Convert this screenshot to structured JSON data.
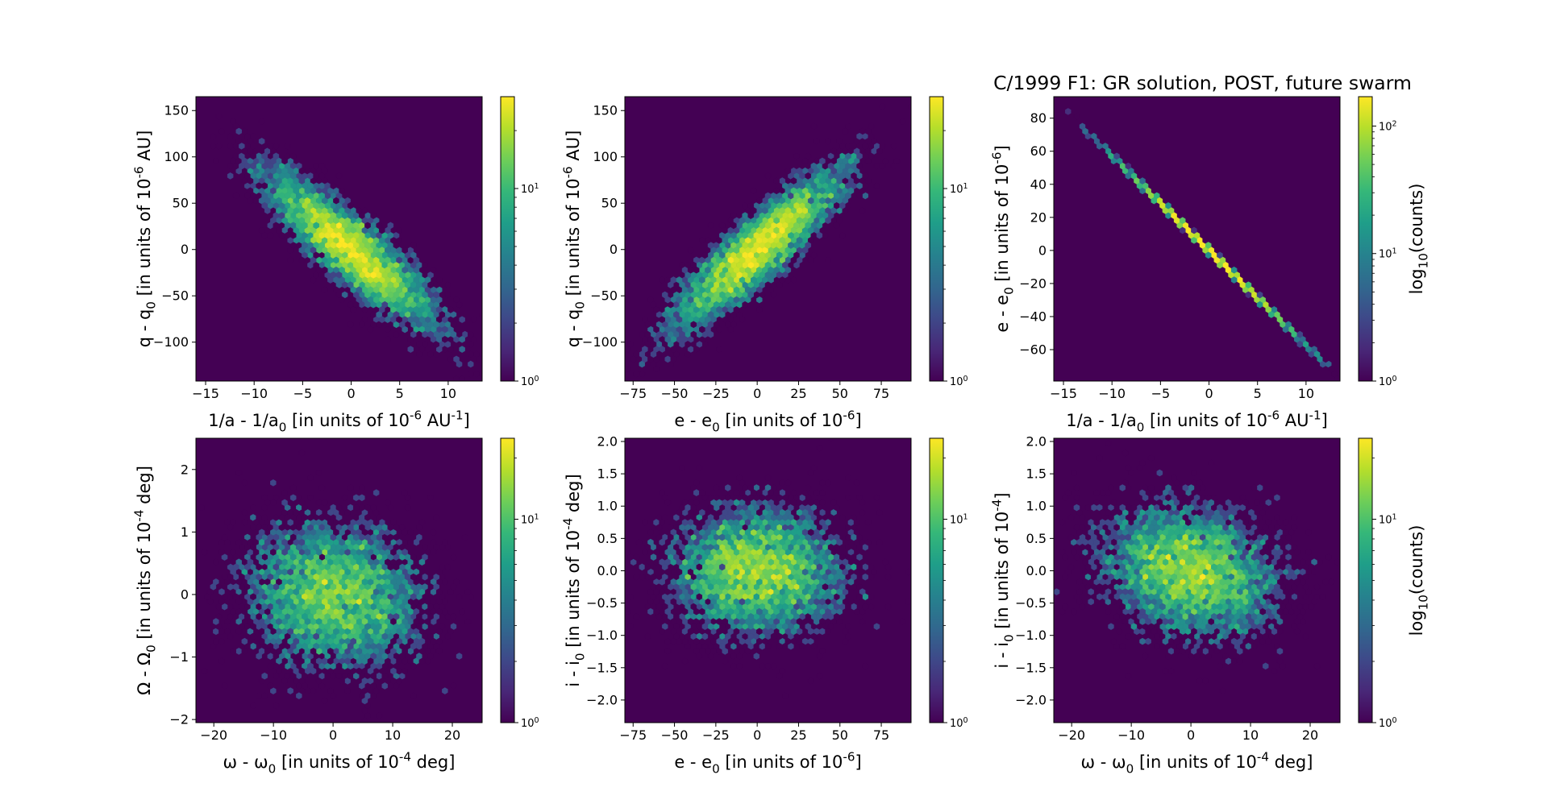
{
  "figure": {
    "title": "C/1999 F1: GR solution, POST, future swarm"
  },
  "colormap": {
    "name": "viridis",
    "stops": [
      "#440154",
      "#482878",
      "#3e4989",
      "#31688e",
      "#26828e",
      "#1f9e89",
      "#35b779",
      "#6ece58",
      "#b5de2b",
      "#fde725"
    ]
  },
  "chart_data": [
    {
      "type": "heatmap",
      "subtype": "hexbin",
      "xlabel": "1/a - 1/a$_0$ [in units of 10$^{-6}$ AU$^{-1}$]",
      "ylabel": "q - q$_0$ [in units of 10$^{-6}$ AU]",
      "xlim": [
        -16,
        13.5
      ],
      "ylim": [
        -142,
        165
      ],
      "xticks": [
        -15,
        -10,
        -5,
        0,
        5,
        10
      ],
      "yticks": [
        -100,
        -50,
        0,
        50,
        100,
        150
      ],
      "distribution": {
        "x_mean": 0,
        "x_sd": 4.5,
        "y_mean": 0,
        "y_sd": 43,
        "correlation": -0.88
      },
      "colorbar": {
        "scale": "log",
        "range": [
          1,
          30
        ],
        "ticks": [
          {
            "value": 1,
            "label": "10^0"
          },
          {
            "value": 10,
            "label": "10^1"
          }
        ],
        "label": ""
      }
    },
    {
      "type": "heatmap",
      "subtype": "hexbin",
      "xlabel": "e - e$_0$ [in units of 10$^{-6}$]",
      "ylabel": "q - q$_0$ [in units of 10$^{-6}$ AU]",
      "xlim": [
        -80,
        93
      ],
      "ylim": [
        -142,
        165
      ],
      "xticks": [
        -75,
        -50,
        -25,
        0,
        25,
        50,
        75
      ],
      "yticks": [
        -100,
        -50,
        0,
        50,
        100,
        150
      ],
      "distribution": {
        "x_mean": 0,
        "x_sd": 26,
        "y_mean": 0,
        "y_sd": 43,
        "correlation": 0.88
      },
      "colorbar": {
        "scale": "log",
        "range": [
          1,
          30
        ],
        "ticks": [
          {
            "value": 1,
            "label": "10^0"
          },
          {
            "value": 10,
            "label": "10^1"
          }
        ],
        "label": ""
      }
    },
    {
      "type": "heatmap",
      "subtype": "hexbin",
      "title": "C/1999 F1: GR solution, POST, future swarm",
      "xlabel": "1/a - 1/a$_0$ [in units of 10$^{-6}$ AU$^{-1}$]",
      "ylabel": "e - e$_0$ [in units of 10$^{-6}$]",
      "xlim": [
        -16,
        13.5
      ],
      "ylim": [
        -79,
        93
      ],
      "xticks": [
        -15,
        -10,
        -5,
        0,
        5,
        10
      ],
      "yticks": [
        -60,
        -40,
        -20,
        0,
        20,
        40,
        60,
        80
      ],
      "distribution": {
        "x_mean": 0,
        "x_sd": 4.5,
        "y_mean": 0,
        "y_sd": 25.7,
        "correlation": -0.9995,
        "slope": -5.72
      },
      "colorbar": {
        "scale": "log",
        "range": [
          1,
          170
        ],
        "ticks": [
          {
            "value": 1,
            "label": "10^0"
          },
          {
            "value": 10,
            "label": "10^1"
          },
          {
            "value": 100,
            "label": "10^2"
          }
        ],
        "label": "log$_{10}$(counts)"
      }
    },
    {
      "type": "heatmap",
      "subtype": "hexbin",
      "xlabel": "ω - ω$_0$ [in units of 10$^{-4}$ deg]",
      "ylabel": "Ω - Ω$_0$ [in units of 10$^{-4}$ deg]",
      "xlim": [
        -23,
        25
      ],
      "ylim": [
        -2.05,
        2.5
      ],
      "xticks": [
        -20,
        -10,
        0,
        10,
        20
      ],
      "yticks": [
        -2,
        -1,
        0,
        1,
        2
      ],
      "distribution": {
        "x_mean": 0,
        "x_sd": 7.5,
        "y_mean": 0,
        "y_sd": 0.6,
        "correlation": -0.1
      },
      "colorbar": {
        "scale": "log",
        "range": [
          1,
          25
        ],
        "ticks": [
          {
            "value": 1,
            "label": "10^0"
          },
          {
            "value": 10,
            "label": "10^1"
          }
        ],
        "label": ""
      }
    },
    {
      "type": "heatmap",
      "subtype": "hexbin",
      "xlabel": "e - e$_0$ [in units of 10$^{-6}$]",
      "ylabel": "i - i$_0$ [in units of 10$^{-4}$ deg]",
      "xlim": [
        -80,
        93
      ],
      "ylim": [
        -2.35,
        2.05
      ],
      "xticks": [
        -75,
        -50,
        -25,
        0,
        25,
        50,
        75
      ],
      "yticks": [
        -2.0,
        -1.5,
        -1.0,
        -0.5,
        0.0,
        0.5,
        1.0,
        1.5,
        2.0
      ],
      "distribution": {
        "x_mean": 0,
        "x_sd": 26,
        "y_mean": 0,
        "y_sd": 0.5,
        "correlation": 0.0
      },
      "colorbar": {
        "scale": "log",
        "range": [
          1,
          25
        ],
        "ticks": [
          {
            "value": 1,
            "label": "10^0"
          },
          {
            "value": 10,
            "label": "10^1"
          }
        ],
        "label": ""
      }
    },
    {
      "type": "heatmap",
      "subtype": "hexbin",
      "xlabel": "ω - ω$_0$ [in units of 10$^{-4}$ deg]",
      "ylabel": "i - i$_0$ [in units of 10$^{-4}$]",
      "xlim": [
        -23,
        25
      ],
      "ylim": [
        -2.35,
        2.05
      ],
      "xticks": [
        -20,
        -10,
        0,
        10,
        20
      ],
      "yticks": [
        -2.0,
        -1.5,
        -1.0,
        -0.5,
        0.0,
        0.5,
        1.0,
        1.5,
        2.0
      ],
      "distribution": {
        "x_mean": 0,
        "x_sd": 7.5,
        "y_mean": 0,
        "y_sd": 0.5,
        "correlation": -0.2
      },
      "colorbar": {
        "scale": "log",
        "range": [
          1,
          25
        ],
        "ticks": [
          {
            "value": 1,
            "label": "10^0"
          },
          {
            "value": 10,
            "label": "10^1"
          }
        ],
        "label": "log$_{10}$(counts)"
      }
    }
  ]
}
